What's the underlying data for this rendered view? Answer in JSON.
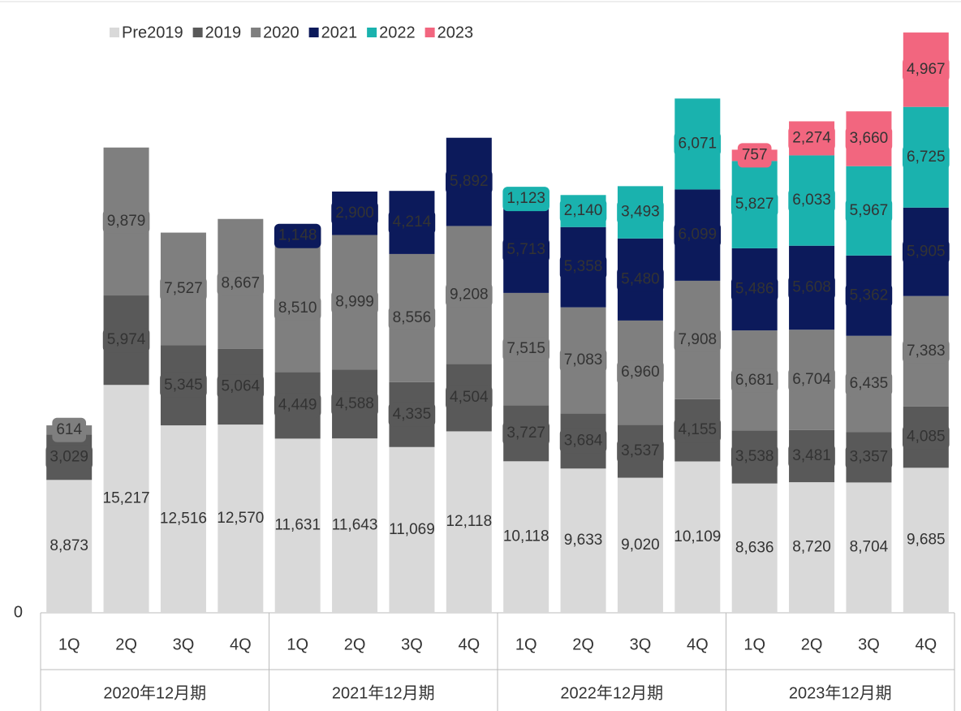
{
  "chart_data": {
    "type": "stacked_bar",
    "categories": [
      "1Q",
      "2Q",
      "3Q",
      "4Q",
      "1Q",
      "2Q",
      "3Q",
      "4Q",
      "1Q",
      "2Q",
      "3Q",
      "4Q",
      "1Q",
      "2Q",
      "3Q",
      "4Q"
    ],
    "groups": [
      "2020年12月期",
      "2021年12月期",
      "2022年12月期",
      "2023年12月期"
    ],
    "ylim": [
      0,
      40000
    ],
    "yticks": [
      0
    ],
    "series": [
      {
        "name": "Pre2019",
        "color": "#d9d9d9",
        "values": [
          8873,
          15217,
          12516,
          12570,
          11631,
          11643,
          11069,
          12118,
          10118,
          9633,
          9020,
          10109,
          8636,
          8720,
          8704,
          9685
        ],
        "value_labels": [
          "8,873",
          "15,217",
          "12,516",
          "12,570",
          "11,631",
          "11,643",
          "11,069",
          "12,118",
          "10,118",
          "9,633",
          "9,020",
          "10,109",
          "8,636",
          "8,720",
          "8,704",
          "9,685"
        ]
      },
      {
        "name": "2019",
        "color": "#595959",
        "values": [
          3029,
          5974,
          5345,
          5064,
          4449,
          4588,
          4335,
          4504,
          3727,
          3684,
          3537,
          4155,
          3538,
          3481,
          3357,
          4085
        ],
        "value_labels": [
          "3,029",
          "5,974",
          "5,345",
          "5,064",
          "4,449",
          "4,588",
          "4,335",
          "4,504",
          "3,727",
          "3,684",
          "3,537",
          "4,155",
          "3,538",
          "3,481",
          "3,357",
          "4,085"
        ]
      },
      {
        "name": "2020",
        "color": "#7f7f7f",
        "values": [
          614,
          9879,
          7527,
          8667,
          8510,
          8999,
          8556,
          9208,
          7515,
          7083,
          6960,
          7908,
          6681,
          6704,
          6435,
          7383
        ],
        "value_labels": [
          "614",
          "9,879",
          "7,527",
          "8,667",
          "8,510",
          "8,999",
          "8,556",
          "9,208",
          "7,515",
          "7,083",
          "6,960",
          "7,908",
          "6,681",
          "6,704",
          "6,435",
          "7,383"
        ]
      },
      {
        "name": "2021",
        "color": "#0c1a5b",
        "values": [
          null,
          null,
          null,
          null,
          1148,
          2900,
          4214,
          5892,
          5713,
          5358,
          5480,
          6099,
          5486,
          5608,
          5362,
          5905
        ],
        "value_labels": [
          null,
          null,
          null,
          null,
          "1,148",
          "2,900",
          "4,214",
          "5,892",
          "5,713",
          "5,358",
          "5,480",
          "6,099",
          "5,486",
          "5,608",
          "5,362",
          "5,905"
        ]
      },
      {
        "name": "2022",
        "color": "#1ab2ae",
        "values": [
          null,
          null,
          null,
          null,
          null,
          null,
          null,
          null,
          1123,
          2140,
          3493,
          6071,
          5827,
          6033,
          5967,
          6725
        ],
        "value_labels": [
          null,
          null,
          null,
          null,
          null,
          null,
          null,
          null,
          "1,123",
          "2,140",
          "3,493",
          "6,071",
          "5,827",
          "6,033",
          "5,967",
          "6,725"
        ]
      },
      {
        "name": "2023",
        "color": "#f2667f",
        "values": [
          null,
          null,
          null,
          null,
          null,
          null,
          null,
          null,
          null,
          null,
          null,
          null,
          757,
          2274,
          3660,
          4967
        ],
        "value_labels": [
          null,
          null,
          null,
          null,
          null,
          null,
          null,
          null,
          null,
          null,
          null,
          null,
          "757",
          "2,274",
          "3,660",
          "4,967"
        ]
      }
    ]
  }
}
